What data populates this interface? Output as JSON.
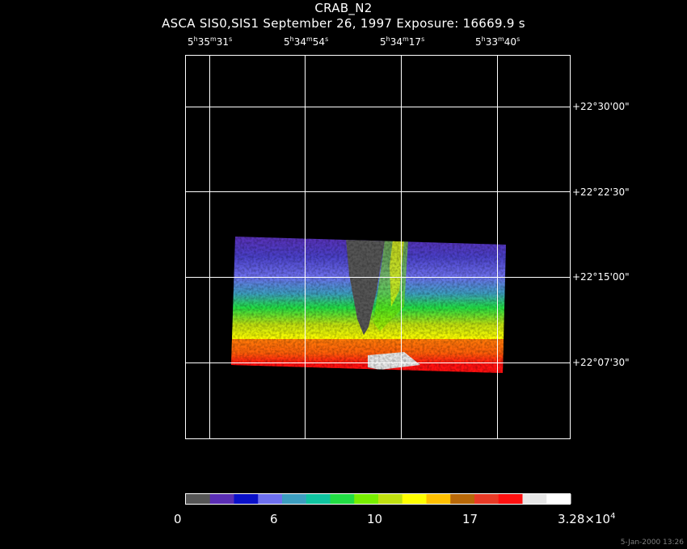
{
  "title": "CRAB_N2",
  "subtitle": "ASCA SIS0,SIS1 September 26, 1997 Exposure: 16669.9 s",
  "ra_ticks": [
    {
      "h": "5",
      "m": "35",
      "s": "31"
    },
    {
      "h": "5",
      "m": "34",
      "s": "54"
    },
    {
      "h": "5",
      "m": "34",
      "s": "17"
    },
    {
      "h": "5",
      "m": "33",
      "s": "40"
    }
  ],
  "ra_units": {
    "h": "h",
    "m": "m",
    "s": "s"
  },
  "dec_ticks": [
    "+22°30'00\"",
    "+22°22'30\"",
    "+22°15'00\"",
    "+22°07'30\""
  ],
  "colorbar": {
    "colors": [
      "#555555",
      "#5a2eb4",
      "#0a10c8",
      "#6e70ee",
      "#3d9ec0",
      "#10c4a0",
      "#22dd44",
      "#77ee00",
      "#c0e010",
      "#ffff00",
      "#ffc000",
      "#b86808",
      "#e83a26",
      "#ff1010",
      "#e6e6e6",
      "#ffffff"
    ],
    "labels": [
      {
        "text": "0"
      },
      {
        "text": "6"
      },
      {
        "text": "10"
      },
      {
        "text": "17"
      },
      {
        "mantissa": "3.28×10",
        "exponent": "4"
      }
    ]
  },
  "timestamp": "5-Jan-2000 13:26"
}
